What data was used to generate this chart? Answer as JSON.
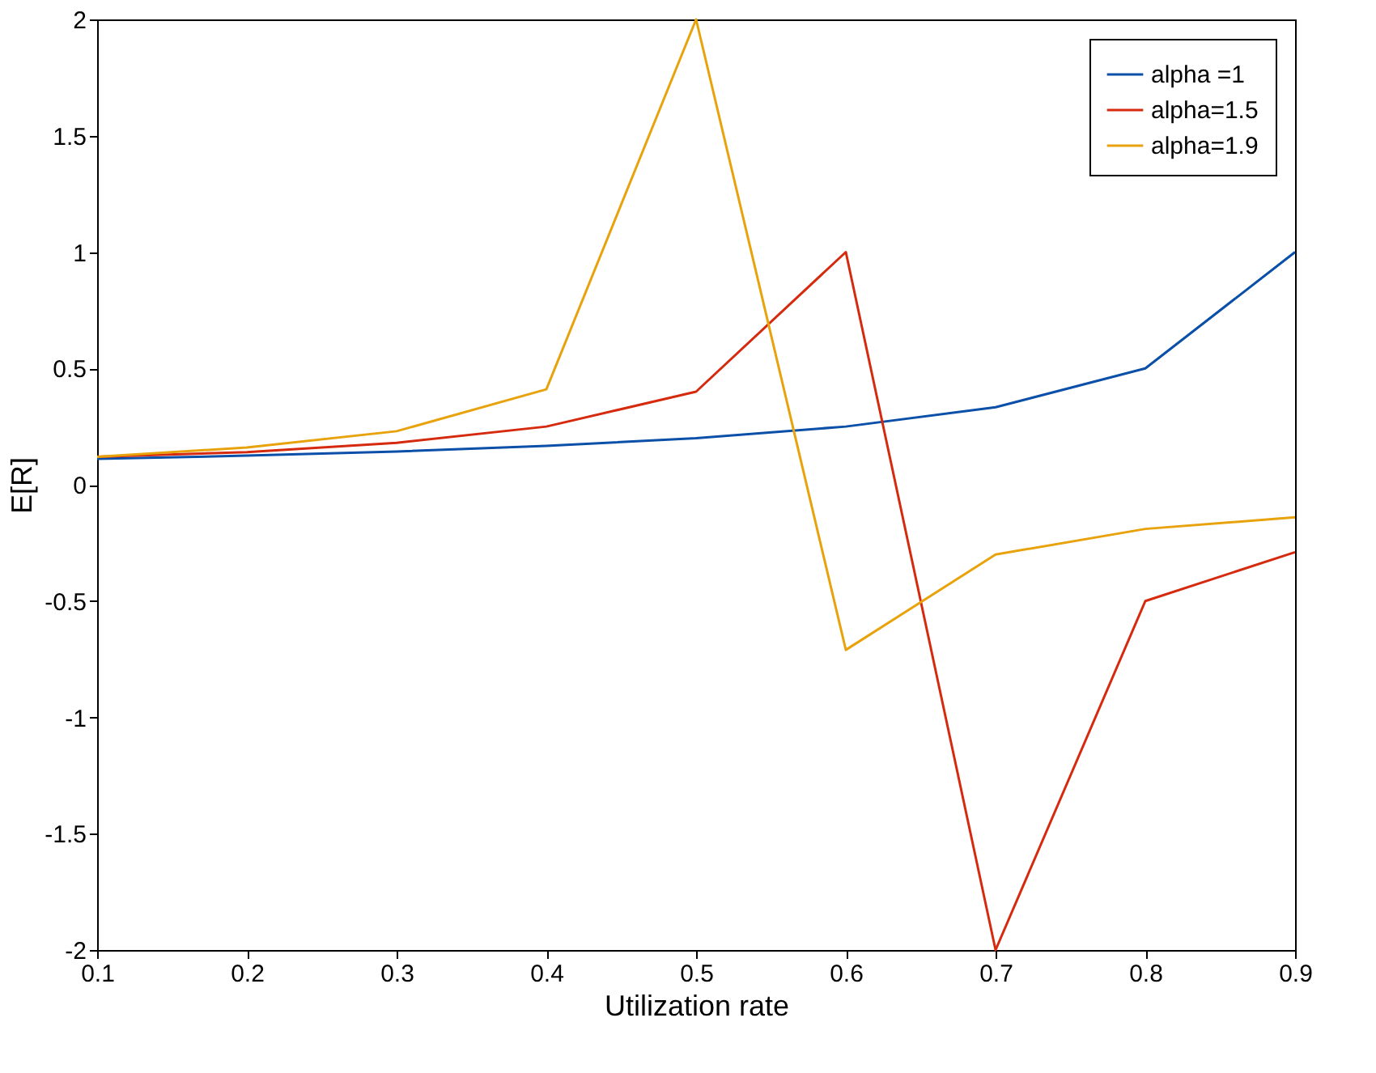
{
  "chart_data": {
    "type": "line",
    "xlabel": "Utilization rate",
    "ylabel": "E[R]",
    "x": [
      0.1,
      0.2,
      0.3,
      0.4,
      0.5,
      0.6,
      0.7,
      0.8,
      0.9
    ],
    "series": [
      {
        "name": "alpha =1",
        "color": "#0a4fa8",
        "values": [
          0.111,
          0.125,
          0.143,
          0.167,
          0.2,
          0.25,
          0.333,
          0.5,
          1.0
        ]
      },
      {
        "name": "alpha=1.5",
        "color": "#d62a0e",
        "values": [
          0.12,
          0.14,
          0.18,
          0.25,
          0.4,
          1.0,
          -2.0,
          -0.5,
          -0.29
        ]
      },
      {
        "name": "alpha=1.9",
        "color": "#e8a20c",
        "values": [
          0.12,
          0.16,
          0.23,
          0.41,
          2.0,
          -0.71,
          -0.3,
          -0.19,
          -0.14
        ]
      }
    ],
    "xlim": [
      0.1,
      0.9
    ],
    "xticks": [
      0.1,
      0.2,
      0.3,
      0.4,
      0.5,
      0.6,
      0.7,
      0.8,
      0.9
    ],
    "ylim": [
      -2,
      2
    ],
    "yticks": [
      -2,
      -1.5,
      -1,
      -0.5,
      0,
      0.5,
      1,
      1.5,
      2
    ],
    "grid": false,
    "legend": "top right",
    "marker": "none",
    "line_style": "solid"
  }
}
